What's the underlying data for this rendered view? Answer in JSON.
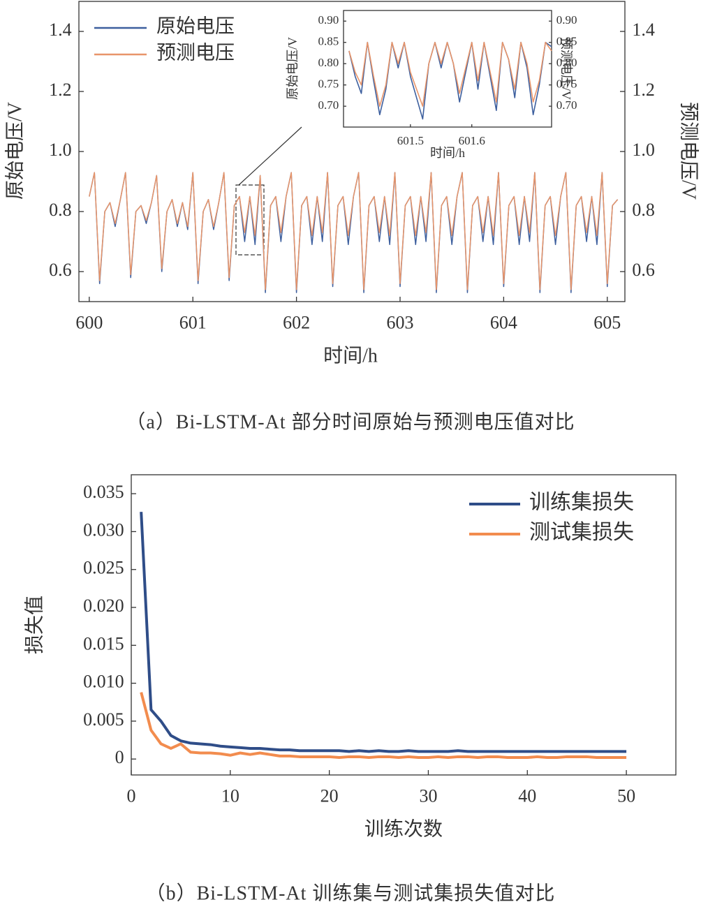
{
  "chart_data": [
    {
      "type": "line",
      "caption": "（a）Bi-LSTM-At 部分时间原始与预测电压值对比",
      "x_label": "时间/h",
      "y_label": "原始电压/V",
      "y2_label": "预测电压/V",
      "legend": "upper left",
      "xlim": [
        599.9,
        605.17
      ],
      "xticks": [
        600,
        601,
        602,
        603,
        604,
        605
      ],
      "ylim": [
        0.5,
        1.5
      ],
      "yticks": [
        0.6,
        0.8,
        {
          "value": 1.0,
          "label": "1.0"
        },
        1.2,
        1.4
      ],
      "y2lim": [
        0.5,
        1.5
      ],
      "y2ticks": [
        0.6,
        0.8,
        {
          "value": 1.0,
          "label": "1.0"
        },
        1.2,
        1.4
      ],
      "x": [
        600,
        600.05,
        600.1,
        600.15,
        600.2,
        600.25,
        600.3,
        600.35,
        600.4,
        600.45,
        600.5,
        600.55,
        600.6,
        600.65,
        600.7,
        600.75,
        600.8,
        600.85,
        600.9,
        600.95,
        601,
        601.05,
        601.1,
        601.15,
        601.2,
        601.25,
        601.3,
        601.35,
        601.4,
        601.45,
        601.5,
        601.55,
        601.6,
        601.65,
        601.7,
        601.75,
        601.8,
        601.85,
        601.9,
        601.95,
        602,
        602.05,
        602.1,
        602.15,
        602.2,
        602.25,
        602.3,
        602.35,
        602.4,
        602.45,
        602.5,
        602.55,
        602.6,
        602.65,
        602.7,
        602.75,
        602.8,
        602.85,
        602.9,
        602.95,
        603,
        603.05,
        603.1,
        603.15,
        603.2,
        603.25,
        603.3,
        603.35,
        603.4,
        603.45,
        603.5,
        603.55,
        603.6,
        603.65,
        603.7,
        603.75,
        603.8,
        603.85,
        603.9,
        603.95,
        604,
        604.05,
        604.1,
        604.15,
        604.2,
        604.25,
        604.3,
        604.35,
        604.4,
        604.45,
        604.5,
        604.55,
        604.6,
        604.65,
        604.7,
        604.75,
        604.8,
        604.85,
        604.9,
        604.95,
        605,
        605.05,
        605.1
      ],
      "series": [
        {
          "name": "原始电压",
          "color": "#3d5f9e",
          "values": [
            0.85,
            0.93,
            0.56,
            0.8,
            0.83,
            0.75,
            0.84,
            0.93,
            0.58,
            0.8,
            0.82,
            0.76,
            0.83,
            0.92,
            0.6,
            0.8,
            0.84,
            0.75,
            0.83,
            0.74,
            0.93,
            0.56,
            0.8,
            0.84,
            0.74,
            0.83,
            0.93,
            0.57,
            0.82,
            0.85,
            0.7,
            0.85,
            0.69,
            0.92,
            0.53,
            0.82,
            0.85,
            0.7,
            0.85,
            0.93,
            0.53,
            0.82,
            0.85,
            0.69,
            0.85,
            0.7,
            0.93,
            0.55,
            0.82,
            0.85,
            0.69,
            0.85,
            0.93,
            0.53,
            0.82,
            0.85,
            0.7,
            0.85,
            0.69,
            0.93,
            0.55,
            0.82,
            0.85,
            0.69,
            0.85,
            0.7,
            0.93,
            0.53,
            0.82,
            0.85,
            0.69,
            0.85,
            0.93,
            0.53,
            0.82,
            0.85,
            0.7,
            0.85,
            0.69,
            0.93,
            0.55,
            0.82,
            0.85,
            0.69,
            0.85,
            0.7,
            0.93,
            0.53,
            0.82,
            0.85,
            0.69,
            0.85,
            0.93,
            0.53,
            0.82,
            0.85,
            0.7,
            0.85,
            0.69,
            0.93,
            0.55,
            0.82,
            0.84
          ]
        },
        {
          "name": "预测电压",
          "color": "#e8956a",
          "axis": "y2",
          "values": [
            0.85,
            0.93,
            0.57,
            0.8,
            0.83,
            0.76,
            0.84,
            0.93,
            0.59,
            0.8,
            0.82,
            0.77,
            0.83,
            0.92,
            0.61,
            0.8,
            0.84,
            0.76,
            0.83,
            0.75,
            0.93,
            0.57,
            0.8,
            0.84,
            0.75,
            0.83,
            0.93,
            0.58,
            0.82,
            0.85,
            0.73,
            0.85,
            0.72,
            0.92,
            0.54,
            0.82,
            0.85,
            0.73,
            0.85,
            0.93,
            0.54,
            0.82,
            0.85,
            0.72,
            0.85,
            0.73,
            0.93,
            0.56,
            0.82,
            0.85,
            0.72,
            0.85,
            0.93,
            0.54,
            0.82,
            0.85,
            0.73,
            0.85,
            0.72,
            0.93,
            0.56,
            0.82,
            0.85,
            0.72,
            0.85,
            0.73,
            0.93,
            0.54,
            0.82,
            0.85,
            0.72,
            0.85,
            0.93,
            0.54,
            0.82,
            0.85,
            0.73,
            0.85,
            0.72,
            0.93,
            0.56,
            0.82,
            0.85,
            0.72,
            0.85,
            0.73,
            0.93,
            0.54,
            0.82,
            0.85,
            0.72,
            0.85,
            0.93,
            0.54,
            0.82,
            0.85,
            0.73,
            0.85,
            0.72,
            0.93,
            0.56,
            0.82,
            0.84
          ]
        }
      ]
    },
    {
      "type": "line",
      "x_label": "时间/h",
      "y_label": "原始电压/V",
      "y2_label": "预测电压/V",
      "xlim": [
        601.391,
        601.73
      ],
      "xticks": [
        601.5,
        601.6
      ],
      "ylim": [
        0.651,
        0.925
      ],
      "yticks": [
        {
          "value": 0.7,
          "label": "0.70"
        },
        0.75,
        {
          "value": 0.8,
          "label": "0.80"
        },
        0.85,
        {
          "value": 0.9,
          "label": "0.90"
        }
      ],
      "y2lim": [
        0.651,
        0.925
      ],
      "y2ticks": [
        {
          "value": 0.7,
          "label": "0.70"
        },
        0.75,
        {
          "value": 0.8,
          "label": "0.80"
        },
        0.85,
        {
          "value": 0.9,
          "label": "0.90"
        }
      ],
      "x": [
        601.4,
        601.41,
        601.42,
        601.43,
        601.44,
        601.45,
        601.46,
        601.47,
        601.48,
        601.49,
        601.5,
        601.51,
        601.52,
        601.53,
        601.54,
        601.55,
        601.56,
        601.57,
        601.58,
        601.59,
        601.6,
        601.61,
        601.62,
        601.63,
        601.64,
        601.65,
        601.66,
        601.67,
        601.68,
        601.69,
        601.7,
        601.71,
        601.72,
        601.73
      ],
      "series": [
        {
          "color": "#3d5f9e",
          "values": [
            0.83,
            0.77,
            0.73,
            0.85,
            0.76,
            0.68,
            0.74,
            0.85,
            0.79,
            0.85,
            0.77,
            0.72,
            0.67,
            0.8,
            0.85,
            0.79,
            0.85,
            0.8,
            0.71,
            0.78,
            0.85,
            0.74,
            0.85,
            0.77,
            0.69,
            0.85,
            0.81,
            0.72,
            0.85,
            0.79,
            0.68,
            0.75,
            0.85,
            0.84
          ]
        },
        {
          "color": "#e8956a",
          "axis": "y2",
          "values": [
            0.83,
            0.78,
            0.75,
            0.85,
            0.77,
            0.7,
            0.75,
            0.85,
            0.8,
            0.85,
            0.78,
            0.74,
            0.7,
            0.8,
            0.85,
            0.8,
            0.85,
            0.8,
            0.73,
            0.79,
            0.85,
            0.76,
            0.85,
            0.78,
            0.71,
            0.85,
            0.81,
            0.74,
            0.85,
            0.8,
            0.71,
            0.76,
            0.85,
            0.83
          ]
        }
      ]
    },
    {
      "type": "line",
      "caption": "（b）Bi-LSTM-At 训练集与测试集损失值对比",
      "x_label": "训练次数",
      "y_label": "损失值",
      "legend": "upper right",
      "xlim": [
        0,
        55
      ],
      "xticks": [
        0,
        10,
        20,
        30,
        40,
        50
      ],
      "ylim": [
        -0.0021,
        0.0375
      ],
      "yticks": [
        0,
        0.005,
        {
          "value": 0.01,
          "label": "0.010"
        },
        0.015,
        {
          "value": 0.02,
          "label": "0.020"
        },
        0.025,
        {
          "value": 0.03,
          "label": "0.030"
        },
        0.035
      ],
      "x": [
        1,
        2,
        3,
        4,
        5,
        6,
        7,
        8,
        9,
        10,
        11,
        12,
        13,
        14,
        15,
        16,
        17,
        18,
        19,
        20,
        21,
        22,
        23,
        24,
        25,
        26,
        27,
        28,
        29,
        30,
        31,
        32,
        33,
        34,
        35,
        36,
        37,
        38,
        39,
        40,
        41,
        42,
        43,
        44,
        45,
        46,
        47,
        48,
        49,
        50
      ],
      "series": [
        {
          "name": "训练集损失",
          "color": "#2f4d88",
          "values": [
            0.0326,
            0.0065,
            0.005,
            0.0031,
            0.0024,
            0.0021,
            0.002,
            0.0019,
            0.0017,
            0.0016,
            0.0015,
            0.0014,
            0.0014,
            0.0013,
            0.0012,
            0.0012,
            0.0011,
            0.0011,
            0.0011,
            0.0011,
            0.0011,
            0.001,
            0.0011,
            0.001,
            0.0011,
            0.001,
            0.001,
            0.0011,
            0.001,
            0.001,
            0.001,
            0.001,
            0.0011,
            0.001,
            0.001,
            0.001,
            0.001,
            0.001,
            0.001,
            0.001,
            0.001,
            0.001,
            0.001,
            0.001,
            0.001,
            0.001,
            0.001,
            0.001,
            0.001,
            0.001
          ]
        },
        {
          "name": "测试集损失",
          "color": "#f28c4e",
          "values": [
            0.0088,
            0.0038,
            0.002,
            0.0014,
            0.002,
            0.0009,
            0.0008,
            0.0008,
            0.0007,
            0.0005,
            0.0008,
            0.0006,
            0.0008,
            0.0006,
            0.0004,
            0.0004,
            0.0003,
            0.0003,
            0.0003,
            0.0003,
            0.0002,
            0.0003,
            0.0003,
            0.0002,
            0.0003,
            0.0003,
            0.0002,
            0.0003,
            0.0002,
            0.0002,
            0.0003,
            0.0002,
            0.0003,
            0.0003,
            0.0002,
            0.0003,
            0.0003,
            0.0002,
            0.0002,
            0.0002,
            0.0003,
            0.0002,
            0.0002,
            0.0003,
            0.0003,
            0.0003,
            0.0002,
            0.0002,
            0.0002,
            0.0002
          ]
        }
      ]
    }
  ]
}
